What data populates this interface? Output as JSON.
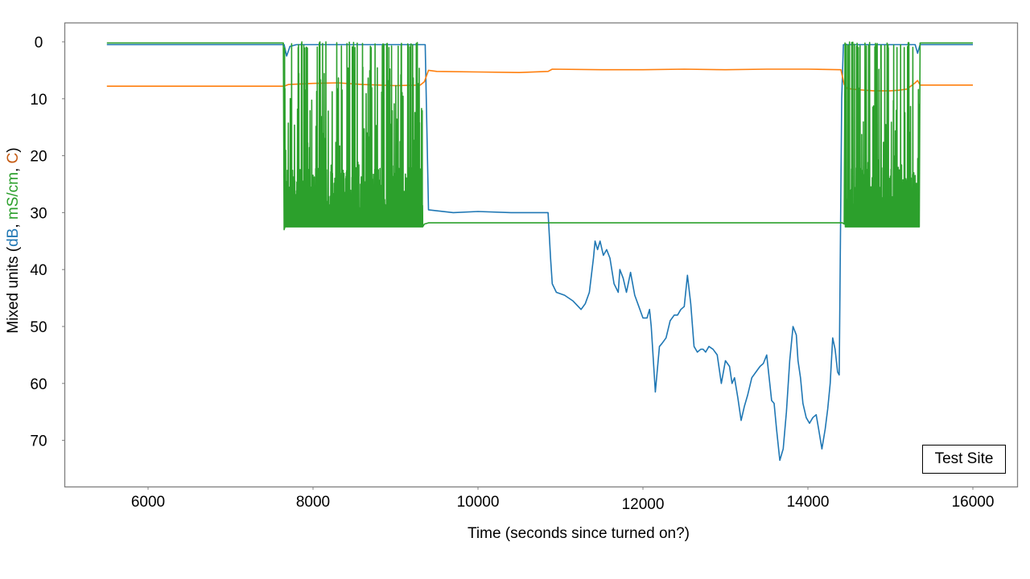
{
  "chart_data": {
    "type": "line",
    "title": "",
    "xlabel": "Time (seconds since turned on?)",
    "ylabel": {
      "prefix": "Mixed units (",
      "parts": [
        {
          "text": "dB",
          "color": "#1f77b4"
        },
        {
          "text": ", ",
          "color": "#000000"
        },
        {
          "text": "mS/cm",
          "color": "#2ca02c"
        },
        {
          "text": ", ",
          "color": "#000000"
        },
        {
          "text": "C",
          "color": "#c55a11"
        }
      ],
      "suffix": ")"
    },
    "xlim": [
      5000,
      16550
    ],
    "ylim": [
      78,
      -3.4
    ],
    "y_inverted": true,
    "xticks": [
      6000,
      8000,
      10000,
      12000,
      14000,
      16000
    ],
    "xtick_labels": [
      "6000",
      "8000",
      "10000",
      "12000",
      "14000",
      "16000"
    ],
    "yticks": [
      0,
      10,
      20,
      30,
      40,
      50,
      60,
      70
    ],
    "ytick_labels": [
      "0",
      "10",
      "20",
      "30",
      "40",
      "50",
      "60",
      "70"
    ],
    "grid": false,
    "legend": null,
    "annotation": "Test Site",
    "series": [
      {
        "name": "dB",
        "color": "#1f77b4",
        "x": [
          5500,
          7650,
          7680,
          7720,
          7800,
          8500,
          9300,
          9360,
          9400,
          9700,
          10000,
          10400,
          10700,
          10850,
          10880,
          10900,
          10950,
          11050,
          11150,
          11250,
          11300,
          11350,
          11400,
          11420,
          11450,
          11480,
          11520,
          11560,
          11600,
          11650,
          11700,
          11720,
          11760,
          11800,
          11850,
          11900,
          11950,
          12000,
          12050,
          12080,
          12100,
          12150,
          12200,
          12230,
          12280,
          12330,
          12380,
          12420,
          12460,
          12500,
          12540,
          12580,
          12620,
          12660,
          12700,
          12730,
          12760,
          12800,
          12850,
          12900,
          12950,
          13000,
          13050,
          13080,
          13110,
          13150,
          13190,
          13230,
          13270,
          13320,
          13370,
          13420,
          13460,
          13500,
          13560,
          13590,
          13620,
          13660,
          13700,
          13740,
          13780,
          13820,
          13860,
          13880,
          13910,
          13940,
          13980,
          14020,
          14060,
          14100,
          14130,
          14170,
          14210,
          14240,
          14270,
          14300,
          14330,
          14360,
          14380,
          14410,
          14430,
          14470,
          14700,
          15000,
          15300,
          15330,
          15360,
          15380,
          16000
        ],
        "y": [
          0.5,
          0.5,
          2.5,
          0.8,
          0.5,
          0.5,
          0.5,
          0.5,
          29.5,
          30.0,
          29.8,
          30.0,
          30.0,
          30.0,
          38.0,
          42.5,
          44.0,
          44.5,
          45.5,
          47.0,
          46.0,
          44.0,
          38.0,
          35.0,
          36.5,
          35.0,
          37.5,
          36.5,
          38.0,
          42.5,
          44.0,
          40.0,
          41.5,
          44.0,
          40.5,
          44.5,
          46.5,
          48.5,
          48.5,
          47.0,
          50.0,
          61.5,
          53.5,
          53.0,
          52.0,
          49.0,
          48.0,
          48.0,
          47.0,
          46.5,
          41.0,
          46.0,
          53.5,
          54.5,
          54.0,
          54.0,
          54.5,
          53.5,
          54.0,
          55.0,
          60.0,
          56.0,
          57.0,
          60.0,
          59.0,
          62.5,
          66.5,
          64.0,
          62.0,
          59.0,
          58.0,
          57.0,
          56.5,
          55.0,
          63.0,
          63.5,
          68.0,
          73.5,
          71.5,
          65.0,
          56.0,
          50.0,
          51.5,
          56.0,
          59.0,
          63.5,
          66.0,
          67.0,
          66.0,
          65.5,
          68.0,
          71.5,
          68.0,
          64.5,
          60.0,
          52.0,
          54.0,
          58.0,
          58.5,
          10.0,
          0.5,
          0.5,
          0.5,
          0.5,
          0.5,
          2.0,
          0.5,
          0.5,
          0.5
        ]
      },
      {
        "name": "C",
        "color": "#ff7f0e",
        "x": [
          5500,
          7650,
          7700,
          8000,
          8300,
          8600,
          9000,
          9300,
          9350,
          9400,
          9500,
          10000,
          10500,
          10850,
          10900,
          11500,
          12000,
          12500,
          13000,
          13500,
          14000,
          14400,
          14440,
          14480,
          14600,
          14800,
          15000,
          15100,
          15200,
          15300,
          15330,
          15360,
          16000
        ],
        "y": [
          7.8,
          7.8,
          7.5,
          7.3,
          7.2,
          7.5,
          7.7,
          7.6,
          7.0,
          5.0,
          5.2,
          5.3,
          5.4,
          5.2,
          4.8,
          4.9,
          4.9,
          4.8,
          4.9,
          4.8,
          4.8,
          4.9,
          7.5,
          8.2,
          8.4,
          8.6,
          8.6,
          8.5,
          8.3,
          7.2,
          6.8,
          7.6,
          7.6
        ]
      },
      {
        "name": "mS/cm",
        "color": "#2ca02c",
        "noisy_segments": [
          [
            7650,
            9330
          ],
          [
            14450,
            15350
          ]
        ],
        "x": [
          5500,
          7640,
          7650,
          7660,
          9330,
          9350,
          9400,
          10000,
          11000,
          12000,
          13000,
          14000,
          14420,
          14440,
          14450,
          15350,
          15360,
          15400,
          16000
        ],
        "y": [
          0.2,
          0.2,
          33.0,
          32.5,
          32.5,
          32.0,
          31.8,
          31.8,
          31.8,
          31.8,
          31.8,
          31.8,
          31.8,
          32.0,
          0.2,
          32.5,
          0.2,
          0.2,
          0.2
        ],
        "noise_range": [
          0.0,
          32.5
        ]
      }
    ]
  }
}
